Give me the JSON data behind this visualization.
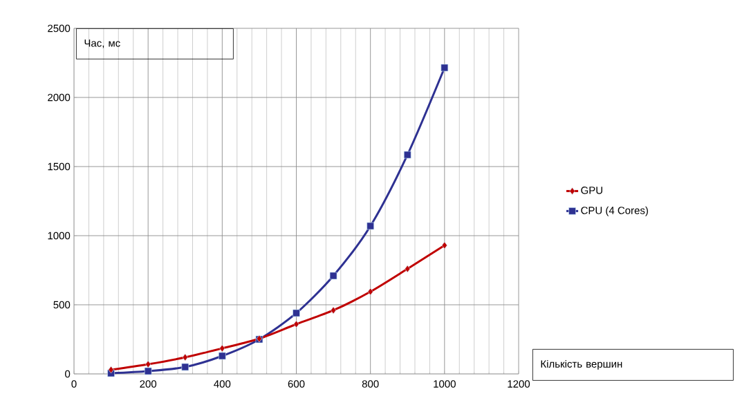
{
  "chart_data": {
    "type": "line",
    "xlabel": "Кількість вершин",
    "ylabel": "Час, мс",
    "x": [
      100,
      200,
      300,
      400,
      500,
      600,
      700,
      800,
      900,
      1000
    ],
    "series": [
      {
        "name": "GPU",
        "color": "#c00000",
        "marker": "diamond",
        "values": [
          30,
          70,
          120,
          185,
          255,
          360,
          460,
          595,
          760,
          930
        ]
      },
      {
        "name": "CPU (4 Cores)",
        "color": "#2e3192",
        "marker": "square",
        "values": [
          5,
          20,
          50,
          130,
          250,
          440,
          710,
          1070,
          1585,
          2215
        ]
      }
    ],
    "xlim": [
      0,
      1200
    ],
    "xticks": [
      0,
      200,
      400,
      600,
      800,
      1000,
      1200
    ],
    "ylim": [
      0,
      2500
    ],
    "yticks": [
      0,
      500,
      1000,
      1500,
      2000,
      2500
    ],
    "grid": true,
    "legend": "right"
  }
}
